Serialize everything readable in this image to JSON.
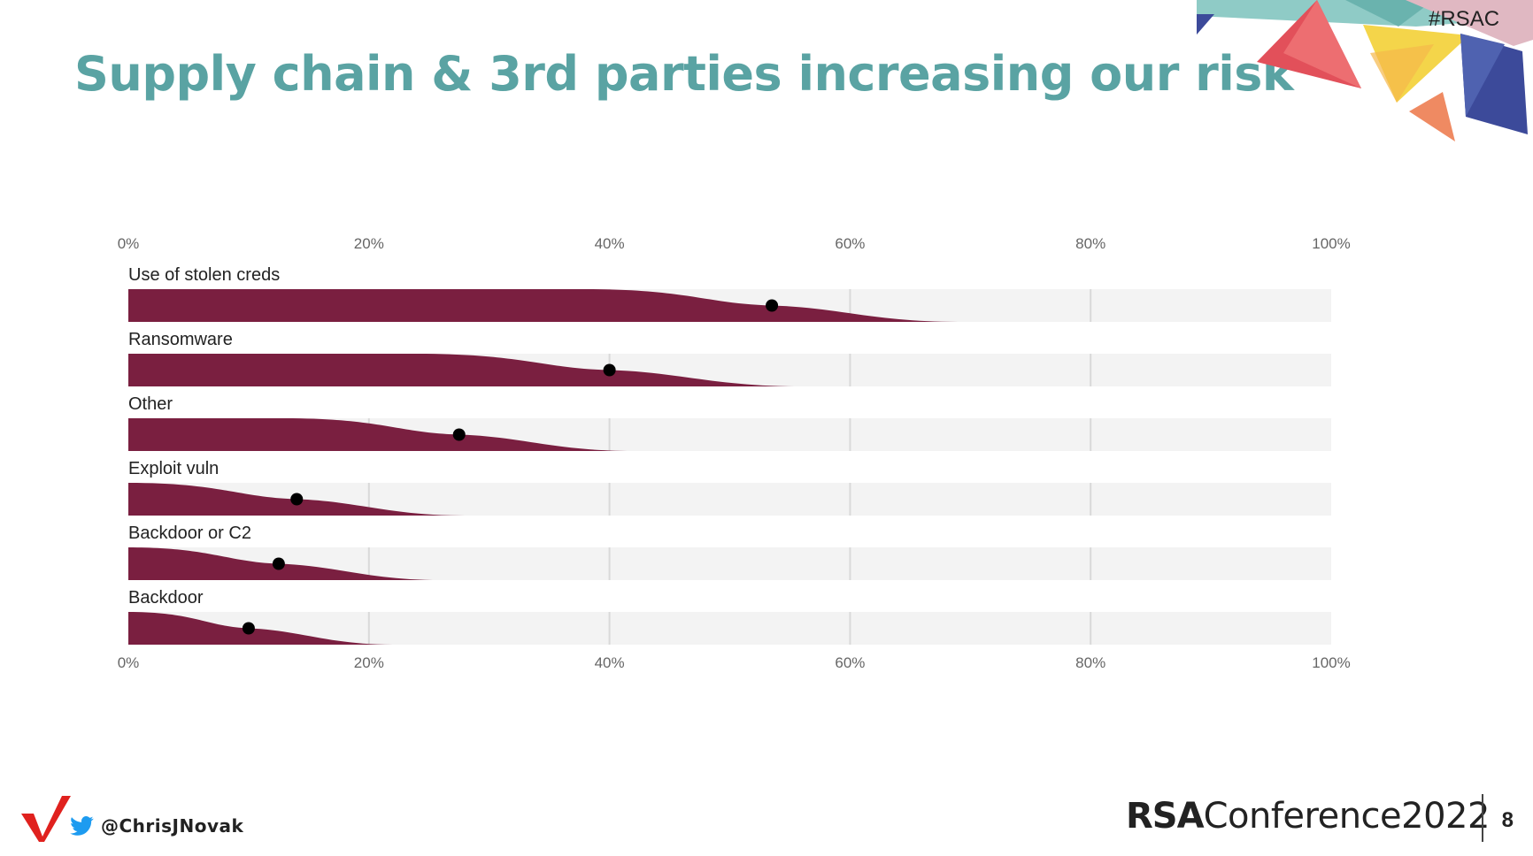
{
  "slide": {
    "title": "Supply chain & 3rd parties increasing our risk",
    "hashtag": "#RSAC",
    "twitter_handle": "@ChrisJNovak",
    "brand_rsa": "RSA",
    "brand_conference": "Conference2022",
    "page_number": "8"
  },
  "colors": {
    "title": "#5aa3a3",
    "bar": "#7a1f40",
    "track": "#f3f3f3",
    "gridline": "#d9d9d9",
    "dot": "#000000",
    "verizon_check": "#e0211e",
    "twitter": "#1d9bf0"
  },
  "icons": [
    "twitter-bird-icon",
    "verizon-check-icon"
  ],
  "chart_data": {
    "type": "bar",
    "title": "",
    "xlabel": "",
    "ylabel": "",
    "x_ticks": [
      "0%",
      "20%",
      "40%",
      "60%",
      "80%",
      "100%"
    ],
    "xlim": [
      0,
      100
    ],
    "orientation": "horizontal",
    "grid": true,
    "categories": [
      "Use of stolen creds",
      "Ransomware",
      "Other",
      "Exploit vuln",
      "Backdoor or C2",
      "Backdoor"
    ],
    "series": [
      {
        "values": [
          53.5,
          40,
          27.5,
          14,
          12.5,
          10
        ],
        "tail_end": [
          69,
          56,
          42,
          28,
          26,
          22
        ]
      }
    ]
  }
}
